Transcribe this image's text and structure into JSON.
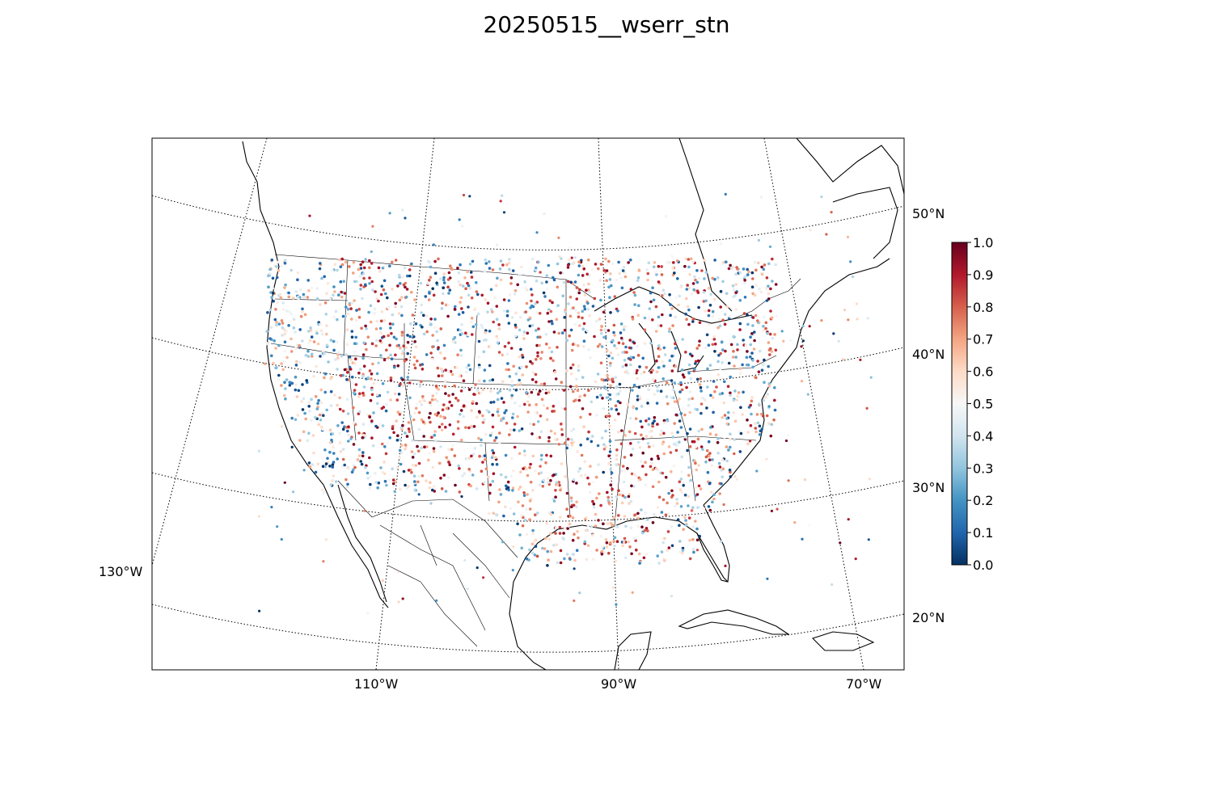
{
  "title": "20250515__wserr_stn",
  "map": {
    "projection": "lambert-conformal",
    "lat_labels": [
      "50°N",
      "40°N",
      "30°N",
      "20°N"
    ],
    "lon_labels": [
      "130°W",
      "110°W",
      "90°W",
      "70°W"
    ],
    "graticule_style": "dotted",
    "coastline_color": "#000000"
  },
  "colorbar": {
    "ticks": [
      "1.0",
      "0.9",
      "0.8",
      "0.7",
      "0.6",
      "0.5",
      "0.4",
      "0.3",
      "0.2",
      "0.1",
      "0.0"
    ],
    "range": [
      0.0,
      1.0
    ],
    "colormap": "RdBu_r",
    "stops": [
      "#053061",
      "#2166ac",
      "#4393c3",
      "#92c5de",
      "#d1e5f0",
      "#f7f7f7",
      "#fddbc7",
      "#f4a582",
      "#d6604d",
      "#b2182b",
      "#67001f"
    ]
  }
}
